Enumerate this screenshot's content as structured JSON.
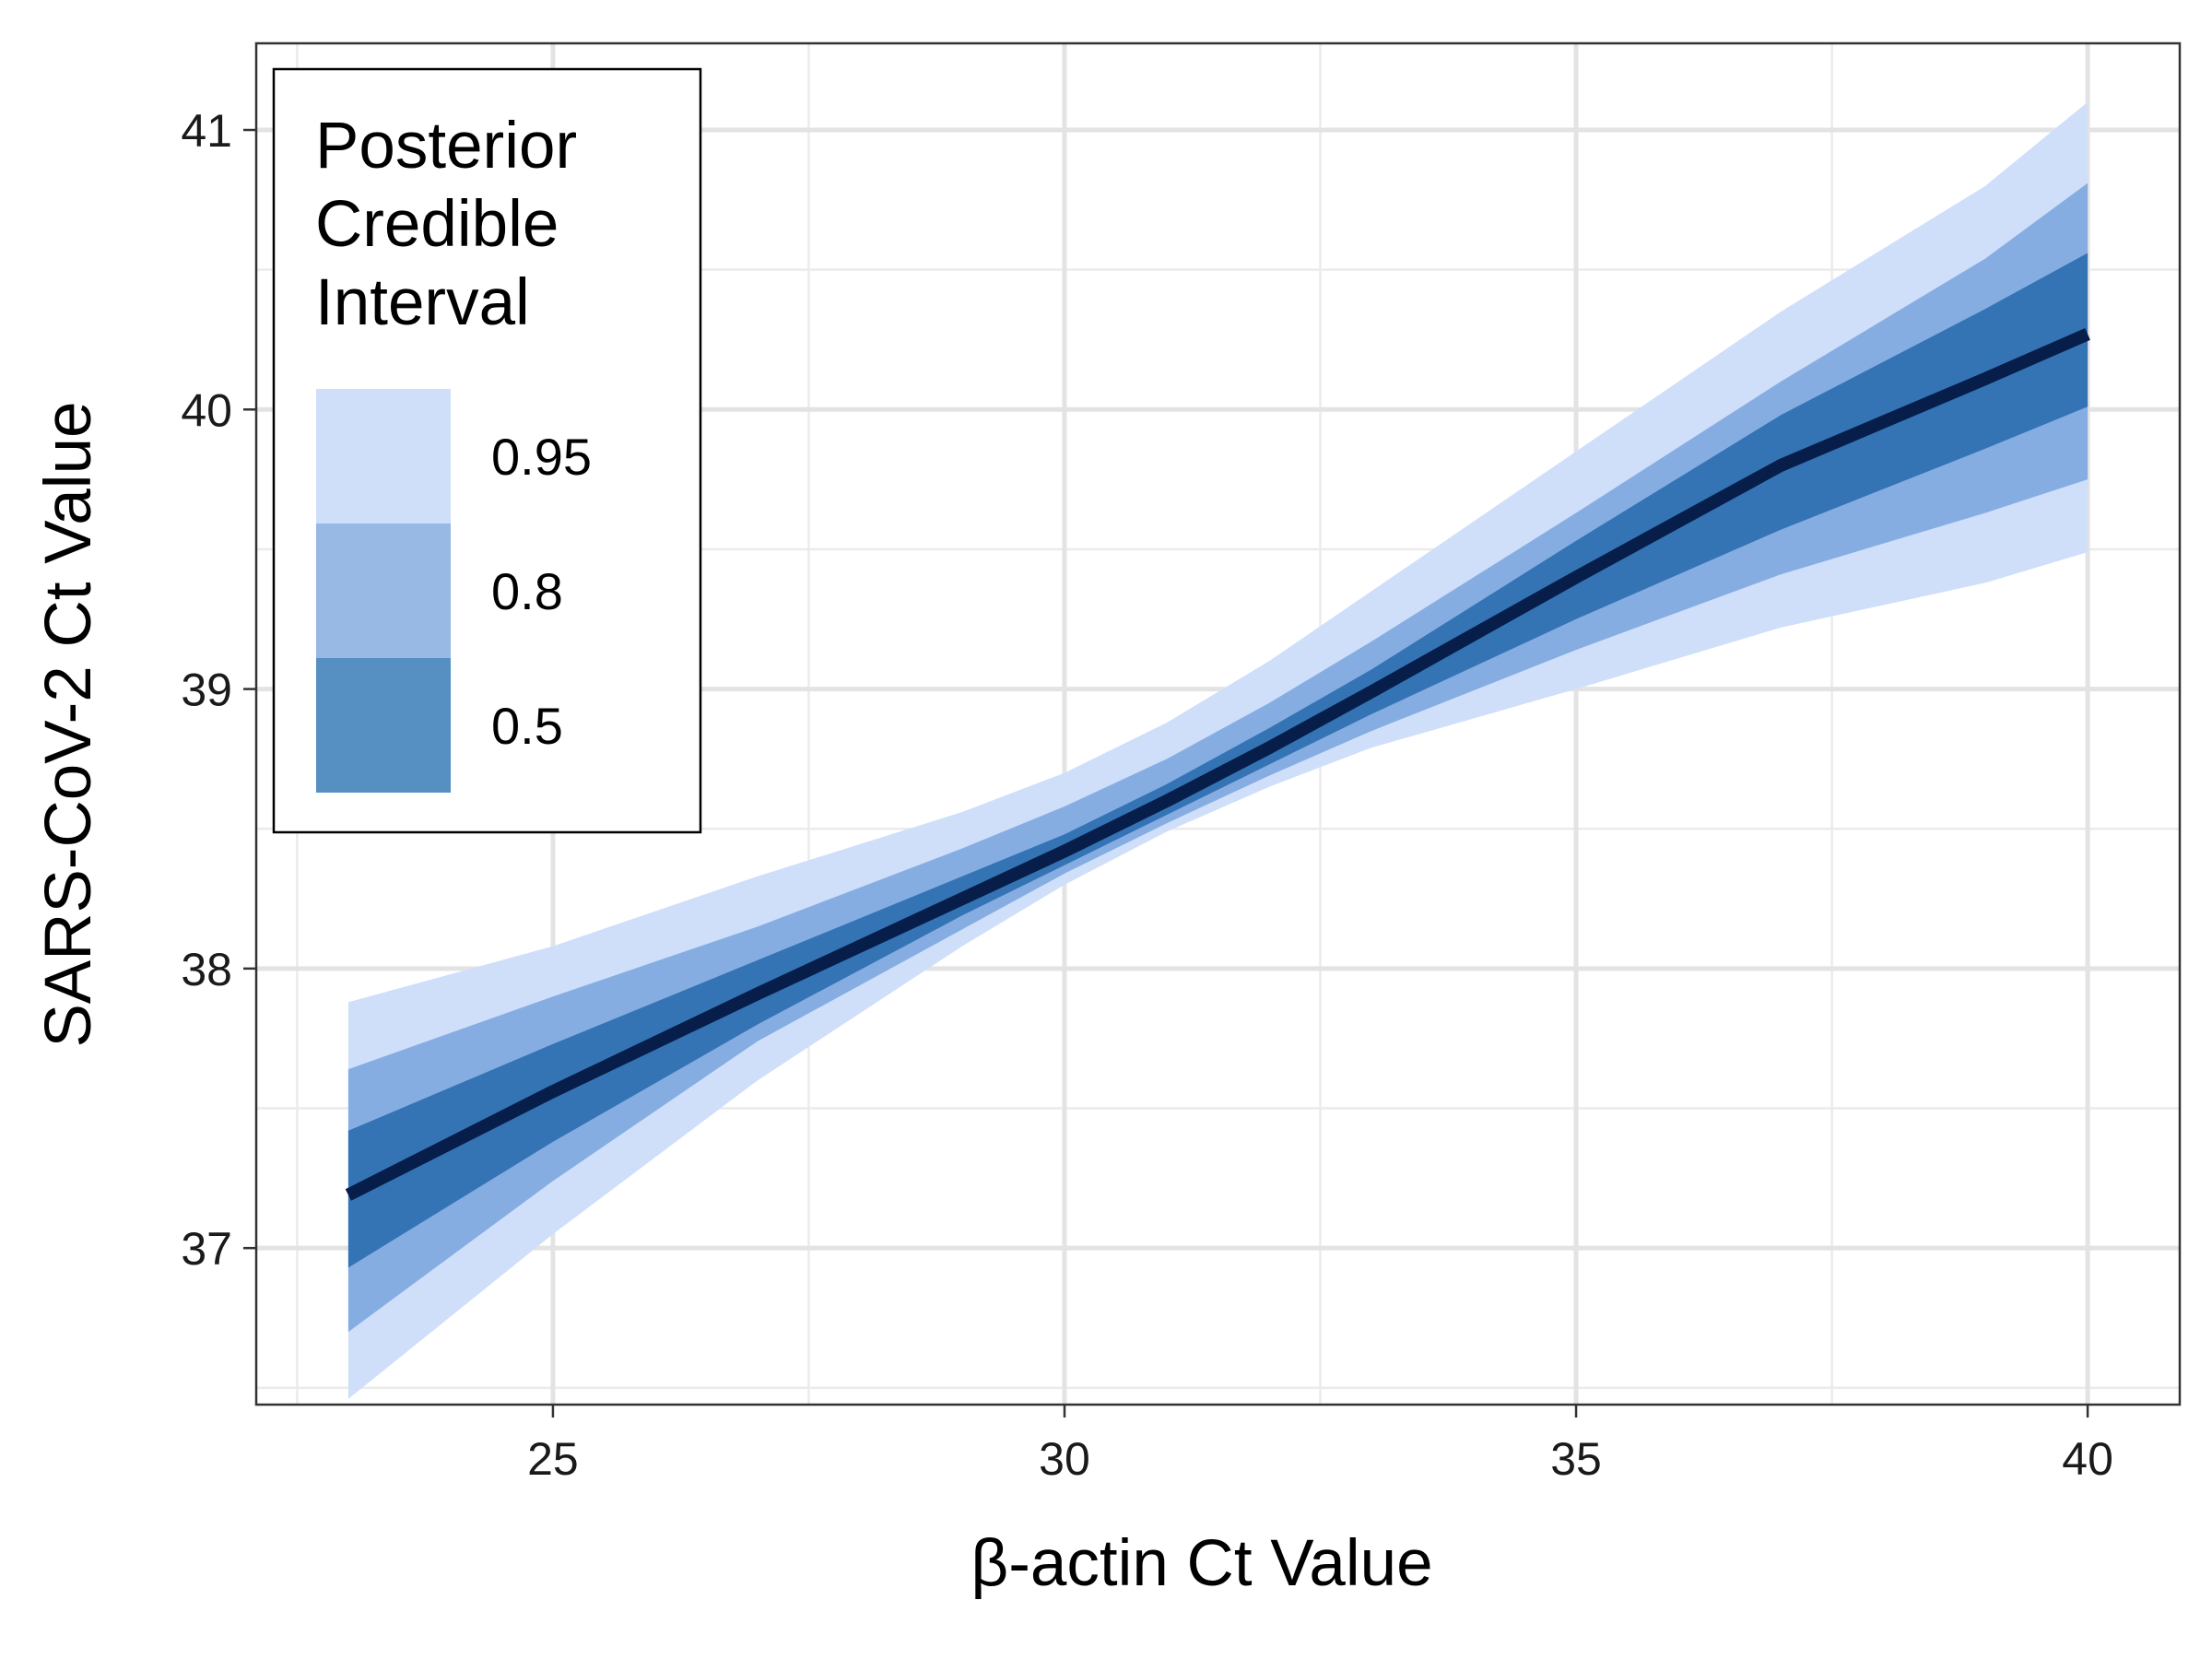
{
  "chart_data": {
    "type": "area",
    "xlabel": "β-actin Ct Value",
    "ylabel": "SARS-CoV-2 Ct Value",
    "xlim": [
      22.1,
      40.9
    ],
    "ylim": [
      36.44,
      41.31
    ],
    "x_ticks": [
      25,
      30,
      35,
      40
    ],
    "x_tick_labels": [
      "25",
      "30",
      "35",
      "40"
    ],
    "x_minor_grid": [
      22.5,
      27.5,
      32.5,
      37.5
    ],
    "y_ticks": [
      37,
      38,
      39,
      40,
      41
    ],
    "y_tick_labels": [
      "37",
      "38",
      "39",
      "40",
      "41"
    ],
    "y_minor_grid": [
      36.5,
      37.5,
      38.5,
      39.5,
      40.5
    ],
    "grid": true,
    "legend": {
      "title_lines": [
        "Posterior",
        "Credible",
        "Interval"
      ],
      "placement": "top-left",
      "entries": [
        {
          "label": "0.95",
          "color": "#cfdffa"
        },
        {
          "label": "0.8",
          "color": "#98b9e4"
        },
        {
          "label": "0.5",
          "color": "#568fc2"
        }
      ]
    },
    "x": [
      23,
      25,
      27,
      29,
      30,
      31,
      32,
      33,
      35,
      37,
      39,
      40
    ],
    "median": [
      37.19,
      37.56,
      37.91,
      38.25,
      38.42,
      38.6,
      38.79,
      38.99,
      39.4,
      39.8,
      40.11,
      40.27
    ],
    "bands": [
      {
        "level": "0.95",
        "color": "#cfdffa",
        "lower": [
          36.46,
          37.05,
          37.6,
          38.08,
          38.3,
          38.49,
          38.65,
          38.79,
          39.0,
          39.22,
          39.38,
          39.49
        ],
        "upper": [
          37.88,
          38.08,
          38.33,
          38.56,
          38.7,
          38.88,
          39.1,
          39.35,
          39.85,
          40.35,
          40.8,
          41.1
        ]
      },
      {
        "level": "0.8",
        "color": "#86ade2",
        "lower": [
          36.7,
          37.24,
          37.74,
          38.14,
          38.34,
          38.52,
          38.69,
          38.85,
          39.14,
          39.41,
          39.63,
          39.75
        ],
        "upper": [
          37.64,
          37.9,
          38.15,
          38.43,
          38.58,
          38.75,
          38.95,
          39.17,
          39.63,
          40.1,
          40.54,
          40.81
        ]
      },
      {
        "level": "0.5",
        "color": "#3474b5",
        "lower": [
          36.93,
          37.38,
          37.8,
          38.19,
          38.37,
          38.55,
          38.73,
          38.91,
          39.25,
          39.57,
          39.86,
          40.01
        ],
        "upper": [
          37.42,
          37.73,
          38.03,
          38.33,
          38.48,
          38.66,
          38.86,
          39.07,
          39.53,
          39.98,
          40.36,
          40.56
        ]
      }
    ],
    "median_color": "#071e4a"
  }
}
